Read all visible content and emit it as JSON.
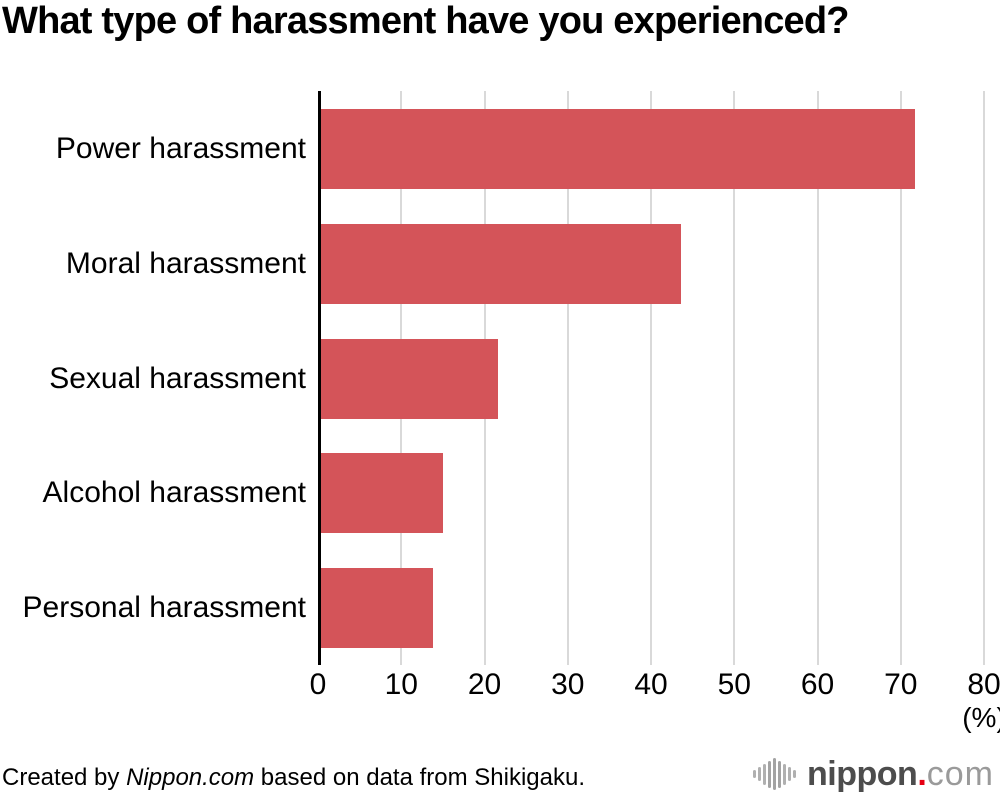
{
  "title": "What type of harassment have you experienced?",
  "chart_data": {
    "type": "bar",
    "orientation": "horizontal",
    "title": "What type of harassment have you experienced?",
    "categories": [
      "Power harassment",
      "Moral harassment",
      "Sexual harassment",
      "Alcohol harassment",
      "Personal harassment"
    ],
    "values": [
      71.4,
      43.3,
      21.3,
      14.6,
      13.4
    ],
    "xlabel": "(%)",
    "ylabel": "",
    "xlim": [
      0,
      80
    ],
    "xticks": [
      0,
      10,
      20,
      30,
      40,
      50,
      60,
      70,
      80
    ],
    "grid": true,
    "legend": "none",
    "bar_color": "#d45459",
    "gridline_color": "#d9d9d9",
    "axis_color": "#000000"
  },
  "footer": {
    "credit_prefix": "Created by ",
    "credit_source": "Nippon.com",
    "credit_suffix": " based on data from Shikigaku.",
    "logo": {
      "icon": "waveform-icon",
      "name_bold": "nippon",
      "dot": ".",
      "name_light": "com",
      "bold_color": "#4d4d4d",
      "dot_color": "#e60012",
      "light_color": "#9a9a9a"
    }
  }
}
